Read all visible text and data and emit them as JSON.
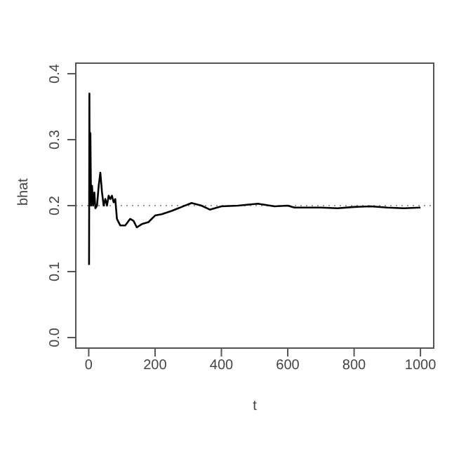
{
  "chart_data": {
    "type": "line",
    "xlabel": "t",
    "ylabel": "bhat",
    "x": [
      1,
      2,
      3,
      5,
      7,
      10,
      13,
      17,
      20,
      25,
      30,
      35,
      40,
      45,
      50,
      55,
      60,
      65,
      70,
      75,
      80,
      85,
      95,
      110,
      125,
      135,
      145,
      160,
      180,
      200,
      220,
      250,
      280,
      310,
      340,
      365,
      400,
      450,
      510,
      560,
      600,
      620,
      700,
      750,
      800,
      850,
      900,
      950,
      1000
    ],
    "series": [
      {
        "color": "#000000",
        "values": [
          0.11,
          0.37,
          0.21,
          0.31,
          0.2,
          0.23,
          0.2,
          0.22,
          0.196,
          0.2,
          0.23,
          0.25,
          0.22,
          0.2,
          0.21,
          0.2,
          0.215,
          0.21,
          0.215,
          0.205,
          0.21,
          0.18,
          0.17,
          0.17,
          0.18,
          0.177,
          0.167,
          0.172,
          0.175,
          0.185,
          0.187,
          0.192,
          0.198,
          0.204,
          0.2,
          0.194,
          0.199,
          0.2,
          0.203,
          0.199,
          0.2,
          0.197,
          0.197,
          0.196,
          0.198,
          0.199,
          0.197,
          0.196,
          0.197
        ]
      }
    ],
    "xlim": [
      -39,
      1040
    ],
    "xticks": [
      0,
      200,
      400,
      600,
      800,
      1000
    ],
    "ylim": [
      -0.016,
      0.416
    ],
    "yticks": [
      {
        "value": 0,
        "label": "0.0"
      },
      0.1,
      0.2,
      0.3,
      0.4
    ],
    "ref_lines": [
      {
        "axis": "y",
        "value": 0.2,
        "color": "#999999",
        "line_style": "dotted"
      }
    ],
    "marker": "none",
    "line_style": "solid"
  }
}
